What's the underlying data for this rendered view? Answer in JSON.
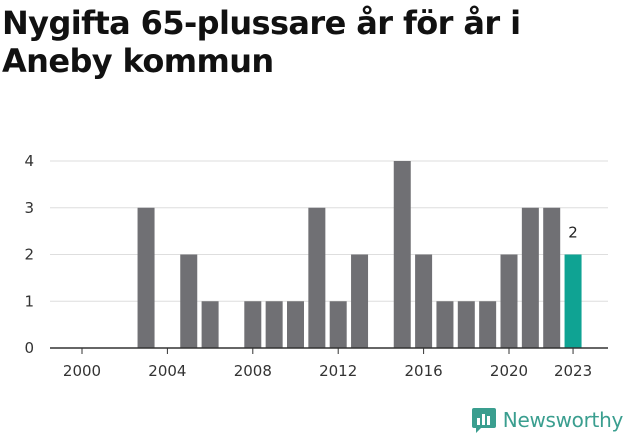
{
  "chart_data": {
    "type": "bar",
    "title": "Nygifta 65-plussare år för år i Aneby kommun",
    "xlabel": "",
    "ylabel": "",
    "categories": [
      "2000",
      "2001",
      "2002",
      "2003",
      "2004",
      "2005",
      "2006",
      "2007",
      "2008",
      "2009",
      "2010",
      "2011",
      "2012",
      "2013",
      "2014",
      "2015",
      "2016",
      "2017",
      "2018",
      "2019",
      "2020",
      "2021",
      "2022",
      "2023"
    ],
    "values": [
      0,
      0,
      0,
      3,
      0,
      2,
      1,
      0,
      1,
      1,
      1,
      3,
      1,
      2,
      0,
      4,
      2,
      1,
      1,
      1,
      2,
      3,
      3,
      2
    ],
    "ylim": [
      0,
      4
    ],
    "yticks": [
      "0",
      "1",
      "2",
      "3",
      "4"
    ],
    "xticks": [
      "2000",
      "2004",
      "2008",
      "2012",
      "2016",
      "2020",
      "2023"
    ],
    "highlight": {
      "category": "2023",
      "label": "2"
    },
    "colors": {
      "bar": "#707074",
      "highlight": "#0fa393",
      "grid": "#dedede",
      "axis": "#333333"
    },
    "grid": true
  },
  "brand": {
    "name": "Newsworthy",
    "icon": "newsworthy-logo-icon",
    "color": "#3a9e8f"
  }
}
